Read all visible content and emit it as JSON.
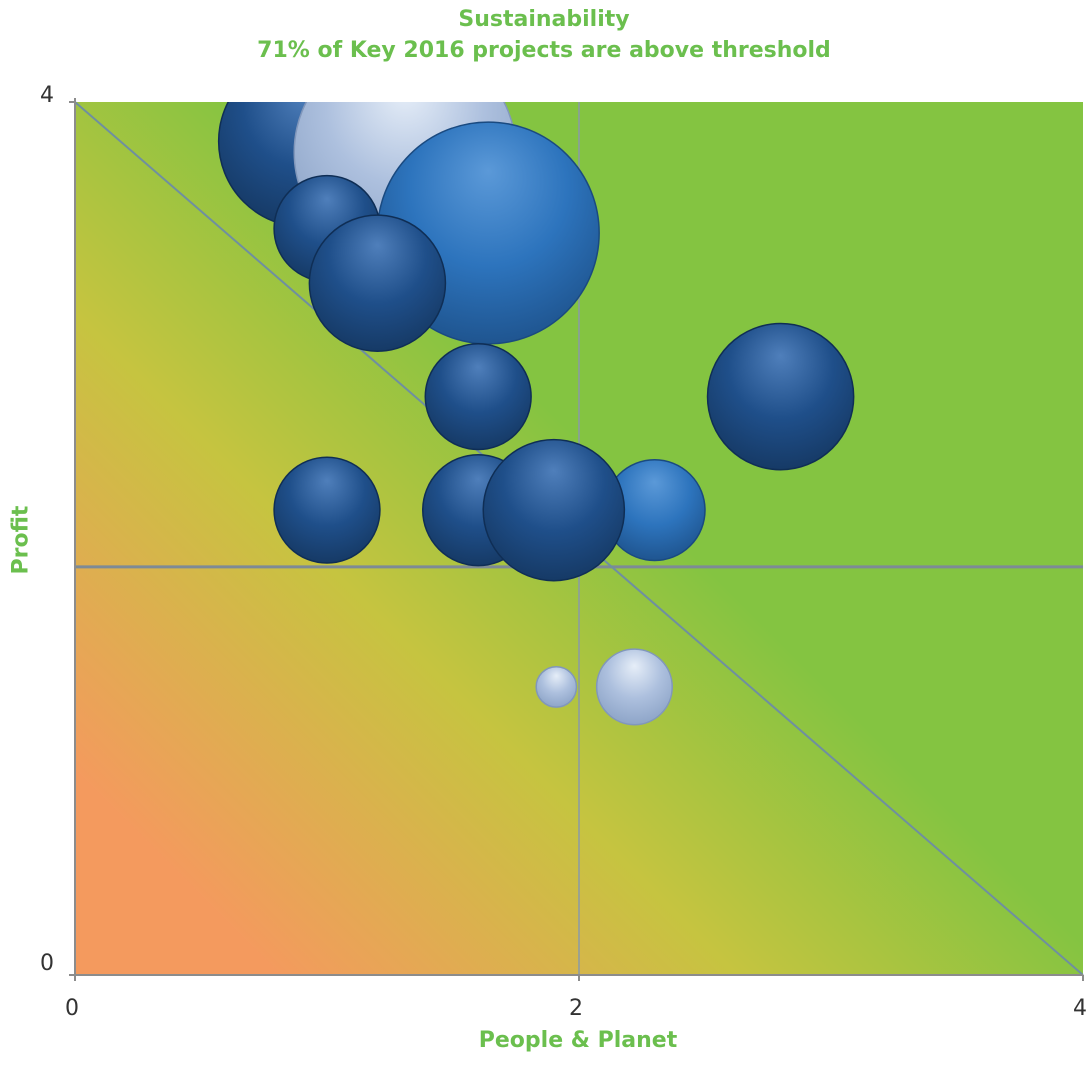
{
  "chart_data": {
    "type": "scatter",
    "subtype": "bubble",
    "title": "Sustainability",
    "subtitle": "71% of Key 2016 projects are above threshold",
    "xlabel": "People & Planet",
    "ylabel": "Profit",
    "xlim": [
      0,
      4
    ],
    "ylim": [
      0,
      4
    ],
    "x_ticks": [
      "0",
      "2",
      "4"
    ],
    "y_ticks": [
      "0",
      "4"
    ],
    "reference_lines": {
      "vertical_x": 2,
      "horizontal_y": 1.87,
      "diagonal": [
        [
          0,
          4
        ],
        [
          4,
          0
        ]
      ]
    },
    "background": {
      "gradient": "orange (bottom-left) to yellow to green (top-right)",
      "colors": [
        "#f49a5e",
        "#c6c440",
        "#84c441"
      ]
    },
    "bubble_colors": {
      "dark_blue": "#1f4f8a",
      "medium_blue": "#2d74bd",
      "light_blue": "#adc0de"
    },
    "points": [
      {
        "x": 1.27,
        "y": 3.74,
        "size": 0.48,
        "color": "light_blue"
      },
      {
        "x": 0.91,
        "y": 3.82,
        "size": 0.34,
        "color": "dark_blue"
      },
      {
        "x": 1.31,
        "y": 3.77,
        "size": 0.44,
        "color": "light_blue"
      },
      {
        "x": 1.64,
        "y": 3.4,
        "size": 0.44,
        "color": "medium_blue"
      },
      {
        "x": 1.0,
        "y": 3.42,
        "size": 0.21,
        "color": "dark_blue"
      },
      {
        "x": 1.2,
        "y": 3.17,
        "size": 0.27,
        "color": "dark_blue"
      },
      {
        "x": 1.6,
        "y": 2.65,
        "size": 0.21,
        "color": "dark_blue"
      },
      {
        "x": 2.8,
        "y": 2.65,
        "size": 0.29,
        "color": "dark_blue"
      },
      {
        "x": 1.0,
        "y": 2.13,
        "size": 0.21,
        "color": "dark_blue"
      },
      {
        "x": 1.6,
        "y": 2.13,
        "size": 0.22,
        "color": "dark_blue"
      },
      {
        "x": 2.3,
        "y": 2.13,
        "size": 0.2,
        "color": "medium_blue"
      },
      {
        "x": 1.9,
        "y": 2.13,
        "size": 0.28,
        "color": "dark_blue"
      },
      {
        "x": 1.91,
        "y": 1.32,
        "size": 0.08,
        "color": "light_blue"
      },
      {
        "x": 2.22,
        "y": 1.32,
        "size": 0.15,
        "color": "light_blue"
      }
    ]
  }
}
